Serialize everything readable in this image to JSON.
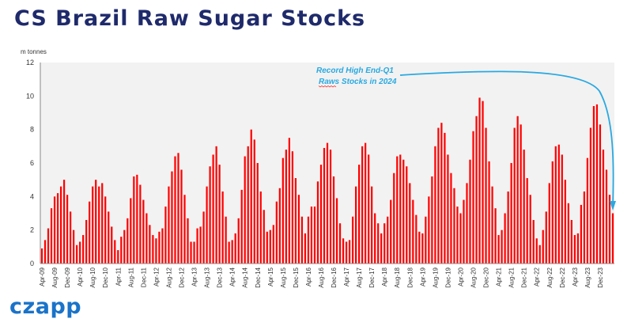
{
  "title": "CS Brazil Raw Sugar Stocks",
  "logo": "czapp",
  "chart_data": {
    "type": "bar",
    "ylabel": "m tonnes",
    "ylim": [
      0,
      12
    ],
    "yticks": [
      "0",
      "2",
      "4",
      "6",
      "8",
      "10",
      "12"
    ],
    "grid": false,
    "xtick_labels": [
      "Apr-09",
      "Aug-09",
      "Dec-09",
      "Apr-10",
      "Aug-10",
      "Dec-10",
      "Apr-11",
      "Aug-11",
      "Dec-11",
      "Apr-12",
      "Aug-12",
      "Dec-12",
      "Apr-13",
      "Aug-13",
      "Dec-13",
      "Apr-14",
      "Aug-14",
      "Dec-14",
      "Apr-15",
      "Aug-15",
      "Dec-15",
      "Apr-16",
      "Aug-16",
      "Dec-16",
      "Apr-17",
      "Aug-17",
      "Dec-17",
      "Apr-18",
      "Aug-18",
      "Dec-18",
      "Apr-19",
      "Aug-19",
      "Dec-19",
      "Apr-20",
      "Aug-20",
      "Dec-20",
      "Apr-21",
      "Aug-21",
      "Dec-21",
      "Apr-22",
      "Aug-22",
      "Dec-22",
      "Apr-23",
      "Aug-23",
      "Dec-23"
    ],
    "series": [
      {
        "name": "",
        "color": "#ff0000",
        "start": "Apr-09",
        "values": [
          0.9,
          1.4,
          2.1,
          3.3,
          4.0,
          4.2,
          4.6,
          5.0,
          4.1,
          3.1,
          2.0,
          1.1,
          1.3,
          1.7,
          2.6,
          3.7,
          4.6,
          5.0,
          4.6,
          4.8,
          4.0,
          3.1,
          2.2,
          1.4,
          0.8,
          1.6,
          2.0,
          2.7,
          3.9,
          5.2,
          5.3,
          4.7,
          3.8,
          3.0,
          2.3,
          1.7,
          1.5,
          1.9,
          2.1,
          3.4,
          4.6,
          5.5,
          6.4,
          6.6,
          5.6,
          4.1,
          2.7,
          1.3,
          1.3,
          2.1,
          2.2,
          3.1,
          4.6,
          5.8,
          6.5,
          7.0,
          5.9,
          4.3,
          2.8,
          1.3,
          1.4,
          1.8,
          2.7,
          4.4,
          6.4,
          7.0,
          8.0,
          7.4,
          6.0,
          4.3,
          3.2,
          1.9,
          2.0,
          2.3,
          3.7,
          4.5,
          6.3,
          6.8,
          7.5,
          6.7,
          5.1,
          4.1,
          2.8,
          1.8,
          2.8,
          3.4,
          3.4,
          4.9,
          5.9,
          6.9,
          7.2,
          6.8,
          5.2,
          3.9,
          2.4,
          1.5,
          1.3,
          1.4,
          2.8,
          4.6,
          5.9,
          7.0,
          7.2,
          6.5,
          4.6,
          3.0,
          2.4,
          1.8,
          2.4,
          2.8,
          3.8,
          5.4,
          6.4,
          6.5,
          6.2,
          5.8,
          4.8,
          3.8,
          2.9,
          1.9,
          1.8,
          2.8,
          4.0,
          5.2,
          7.0,
          8.1,
          8.4,
          7.8,
          6.5,
          5.4,
          4.5,
          3.4,
          3.0,
          3.8,
          4.8,
          6.2,
          7.9,
          8.8,
          9.9,
          9.7,
          8.1,
          6.1,
          4.6,
          3.3,
          1.7,
          2.0,
          3.0,
          4.3,
          6.0,
          8.1,
          8.8,
          8.3,
          6.8,
          5.1,
          4.1,
          2.6,
          1.5,
          1.1,
          2.0,
          3.1,
          4.8,
          6.1,
          7.0,
          7.1,
          6.5,
          5.0,
          3.6,
          2.6,
          1.7,
          1.8,
          3.5,
          4.3,
          6.3,
          8.1,
          9.4,
          9.5,
          8.3,
          6.8,
          5.6,
          4.1,
          3.0
        ]
      }
    ],
    "annotation": {
      "lines": [
        "Record High End-Q1",
        "Raws Stocks in 2024"
      ],
      "color": "#29a9e1"
    }
  }
}
